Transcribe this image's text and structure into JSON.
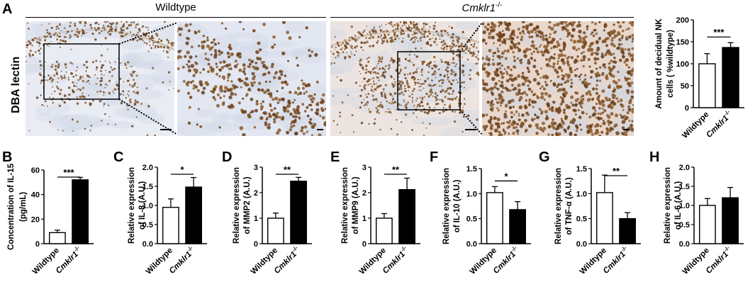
{
  "panelA": {
    "letter": "A",
    "wildtype_title": "Wildtype",
    "cmklr1_title": "Cmklr1",
    "cmklr1_sup": "-/-",
    "stain_label": "DBA lectin"
  },
  "colors": {
    "wildtype_bar": "#ffffff",
    "cmklr1_bar": "#000000",
    "stain": "#8a5a2b"
  },
  "chart_data": [
    {
      "id": "A",
      "type": "bar",
      "letter": "",
      "ylabel": [
        "Amount of decidual NK",
        "cells ( %wildtype)"
      ],
      "categories": [
        "Wildtype",
        "Cmklr1"
      ],
      "values": [
        100,
        137
      ],
      "errors": [
        23,
        11
      ],
      "ylim": [
        0,
        200
      ],
      "yticks": [
        "0",
        "50",
        "100",
        "150",
        "200"
      ],
      "significance": "***"
    },
    {
      "id": "B",
      "type": "bar",
      "letter": "B",
      "ylabel": [
        "Concentration of IL-15",
        "(pg/mL)"
      ],
      "categories": [
        "Wildtype",
        "Cmklr1"
      ],
      "values": [
        9,
        52
      ],
      "errors": [
        2,
        2
      ],
      "ylim": [
        0,
        60
      ],
      "yticks": [
        "0",
        "20",
        "40",
        "60"
      ],
      "significance": "***"
    },
    {
      "id": "C",
      "type": "bar",
      "letter": "C",
      "ylabel": [
        "Relative expression",
        "of IL-8 (A.U.)"
      ],
      "categories": [
        "Wildtype",
        "Cmklr1"
      ],
      "values": [
        0.95,
        1.48
      ],
      "errors": [
        0.22,
        0.25
      ],
      "ylim": [
        0,
        2.0
      ],
      "yticks": [
        "0.0",
        "0.5",
        "1.0",
        "1.5",
        "2.0"
      ],
      "significance": "*"
    },
    {
      "id": "D",
      "type": "bar",
      "letter": "D",
      "ylabel": [
        "Relative expression",
        "of MMP2 (A.U.)"
      ],
      "categories": [
        "Wildtype",
        "Cmklr1"
      ],
      "values": [
        1.0,
        2.45
      ],
      "errors": [
        0.2,
        0.15
      ],
      "ylim": [
        0,
        3
      ],
      "yticks": [
        "0",
        "1",
        "2",
        "3"
      ],
      "significance": "**"
    },
    {
      "id": "E",
      "type": "bar",
      "letter": "E",
      "ylabel": [
        "Relative expression",
        "of MMP9 (A.U.)"
      ],
      "categories": [
        "Wildtype",
        "Cmklr1"
      ],
      "values": [
        1.0,
        2.12
      ],
      "errors": [
        0.18,
        0.45
      ],
      "ylim": [
        0,
        3
      ],
      "yticks": [
        "0",
        "1",
        "2",
        "3"
      ],
      "significance": "**"
    },
    {
      "id": "F",
      "type": "bar",
      "letter": "F",
      "ylabel": [
        "Relative expression",
        "of IL-10 (A.U.)"
      ],
      "categories": [
        "Wildtype",
        "Cmklr1"
      ],
      "values": [
        1.02,
        0.68
      ],
      "errors": [
        0.12,
        0.16
      ],
      "ylim": [
        0,
        1.5
      ],
      "yticks": [
        "0.0",
        "0.5",
        "1.0",
        "1.5"
      ],
      "significance": "*"
    },
    {
      "id": "G",
      "type": "bar",
      "letter": "G",
      "ylabel": [
        "Relative expression",
        "of TNF-α (A.U.)"
      ],
      "categories": [
        "Wildtype",
        "Cmklr1"
      ],
      "values": [
        1.02,
        0.5
      ],
      "errors": [
        0.35,
        0.12
      ],
      "ylim": [
        0,
        1.5
      ],
      "yticks": [
        "0.0",
        "0.5",
        "1.0",
        "1.5"
      ],
      "significance": "**"
    },
    {
      "id": "H",
      "type": "bar",
      "letter": "H",
      "ylabel": [
        "Relative expression",
        "of IL-6 (A.U.)"
      ],
      "categories": [
        "Wildtype",
        "Cmklr1"
      ],
      "values": [
        1.0,
        1.2
      ],
      "errors": [
        0.18,
        0.27
      ],
      "ylim": [
        0,
        2.0
      ],
      "yticks": [
        "0.0",
        "0.5",
        "1.0",
        "1.5",
        "2.0"
      ],
      "significance": ""
    }
  ]
}
